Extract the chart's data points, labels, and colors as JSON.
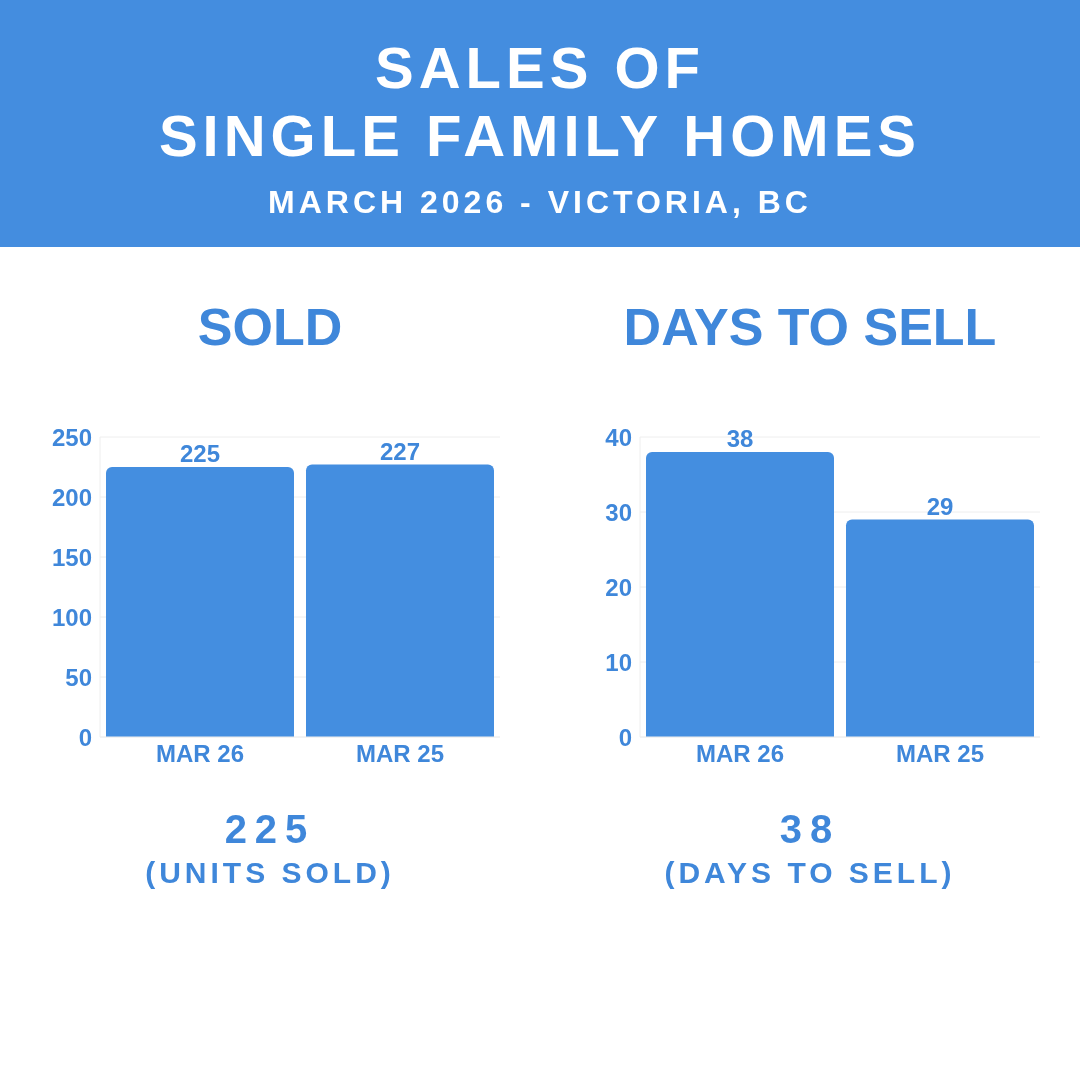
{
  "chart_data": [
    {
      "type": "other",
      "title": "SALES OF\nSINGLE FAMILY HOMES",
      "subtitle": "MARCH 2026 - VICTORIA, BC"
    },
    {
      "type": "bar",
      "title": "SOLD",
      "categories": [
        "MAR 26",
        "MAR 25"
      ],
      "values": [
        225,
        227
      ],
      "color": "#448ee0",
      "ylim": [
        0,
        250
      ],
      "yticks": [
        0,
        50,
        100,
        150,
        200,
        250
      ],
      "grid": "y",
      "data_labels": true,
      "annotations": [
        "225",
        "(UNITS SOLD)"
      ]
    },
    {
      "type": "bar",
      "title": "DAYS TO SELL",
      "categories": [
        "MAR 26",
        "MAR 25"
      ],
      "values": [
        38,
        29
      ],
      "color": "#448ee0",
      "ylim": [
        0,
        40
      ],
      "yticks": [
        0,
        10,
        20,
        30,
        40
      ],
      "grid": "y",
      "data_labels": true,
      "annotations": [
        "38",
        "(DAYS TO SELL)"
      ]
    }
  ]
}
